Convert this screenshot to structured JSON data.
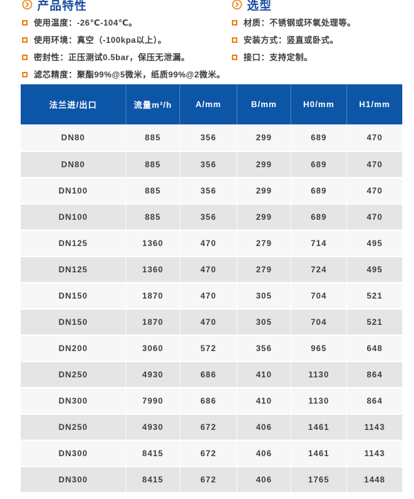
{
  "colors": {
    "header_blue": "#0d56a7",
    "header_divider": "#4d7fc1",
    "title_blue": "#1c4ea3",
    "accent_orange": "#ec8316",
    "row_light": "#f7f7f8",
    "row_gray": "#e6e5e5",
    "body_text": "#3d3d3d"
  },
  "features_section": {
    "title": "产品特性",
    "items": [
      "使用温度：-26℃-104℃。",
      "使用环境：真空（-100kpa以上）。",
      "密封性：正压测试0.5bar，保压无泄漏。",
      "滤芯精度：聚酯99%@5微米，纸质99%@2微米。"
    ]
  },
  "selection_section": {
    "title": "选型",
    "items": [
      "材质：不锈钢或环氧处理等。",
      "安装方式：竖直或卧式。",
      "接口：支持定制。"
    ]
  },
  "table": {
    "headers": [
      "法兰进/出口",
      "流量m³/h",
      "A/mm",
      "B/mm",
      "H0/mm",
      "H1/mm"
    ],
    "rows": [
      [
        "DN80",
        "885",
        "356",
        "299",
        "689",
        "470"
      ],
      [
        "DN80",
        "885",
        "356",
        "299",
        "689",
        "470"
      ],
      [
        "DN100",
        "885",
        "356",
        "299",
        "689",
        "470"
      ],
      [
        "DN100",
        "885",
        "356",
        "299",
        "689",
        "470"
      ],
      [
        "DN125",
        "1360",
        "470",
        "279",
        "714",
        "495"
      ],
      [
        "DN125",
        "1360",
        "470",
        "279",
        "724",
        "495"
      ],
      [
        "DN150",
        "1870",
        "470",
        "305",
        "704",
        "521"
      ],
      [
        "DN150",
        "1870",
        "470",
        "305",
        "704",
        "521"
      ],
      [
        "DN200",
        "3060",
        "572",
        "356",
        "965",
        "648"
      ],
      [
        "DN250",
        "4930",
        "686",
        "410",
        "1130",
        "864"
      ],
      [
        "DN300",
        "7990",
        "686",
        "410",
        "1130",
        "864"
      ],
      [
        "DN250",
        "4930",
        "672",
        "406",
        "1461",
        "1143"
      ],
      [
        "DN300",
        "8415",
        "672",
        "406",
        "1461",
        "1143"
      ],
      [
        "DN300",
        "8415",
        "672",
        "406",
        "1765",
        "1448"
      ]
    ]
  }
}
